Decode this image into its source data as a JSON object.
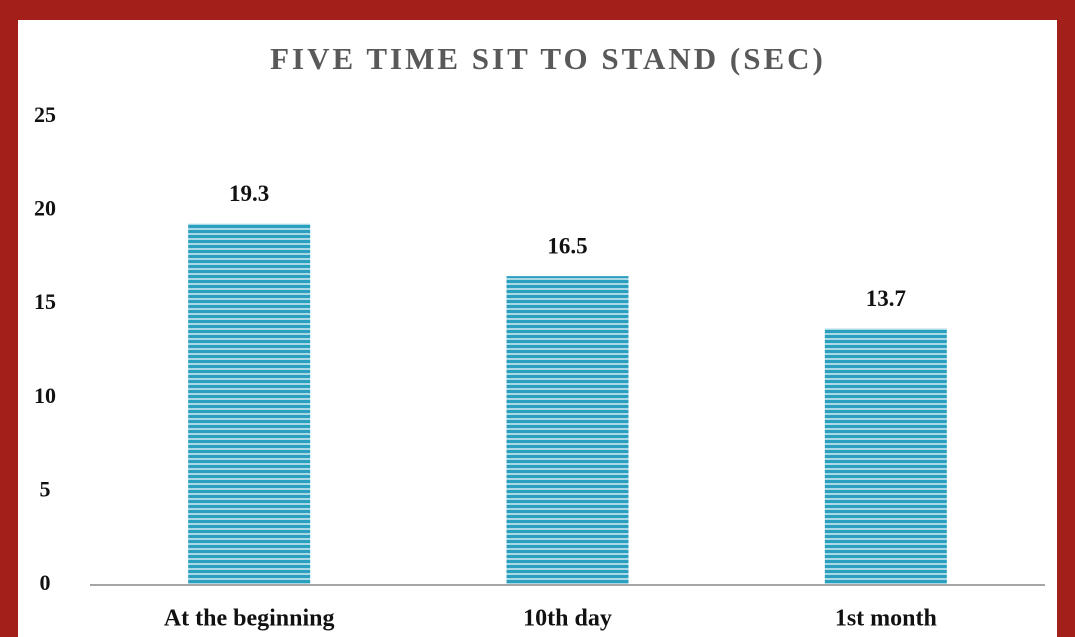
{
  "chart_data": {
    "type": "bar",
    "title": "FIVE TIME SIT TO STAND (SEC)",
    "categories": [
      "At the beginning",
      "10th day",
      "1st month"
    ],
    "values": [
      19.3,
      16.5,
      13.7
    ],
    "color": "#2b9fc0",
    "ylim": [
      0,
      25
    ],
    "yticks": [
      0,
      5,
      10,
      15,
      20,
      25
    ],
    "grid": false
  }
}
